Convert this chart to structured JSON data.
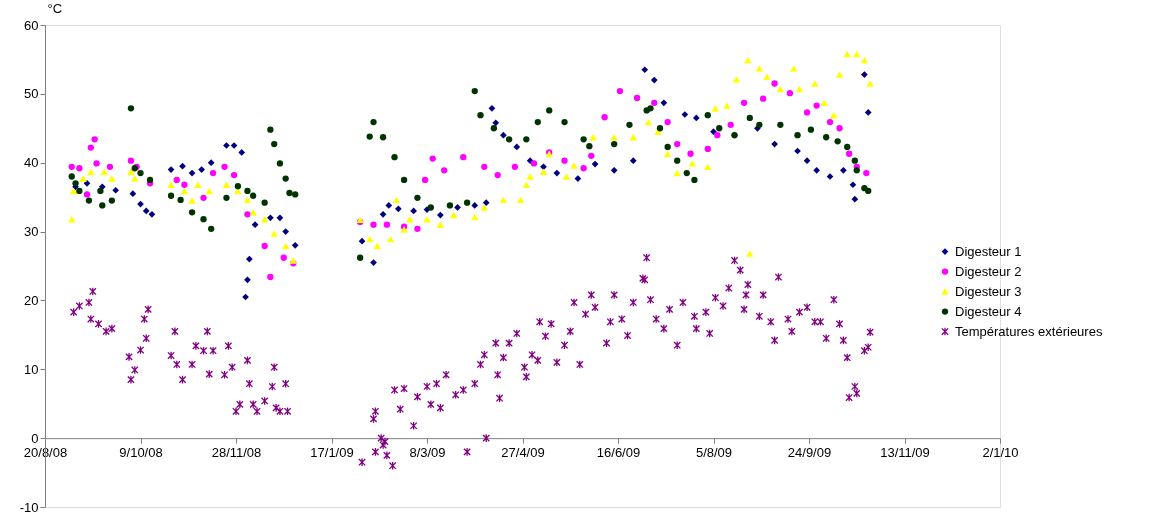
{
  "chart_data": {
    "type": "scatter",
    "ylabel": "°C",
    "xlim": [
      "2008-08-20",
      "2010-01-02"
    ],
    "ylim": [
      -10,
      60
    ],
    "yticks": [
      -10,
      0,
      10,
      20,
      30,
      40,
      50,
      60
    ],
    "xticks": [
      {
        "value": "2008-08-20",
        "label": "20/8/08"
      },
      {
        "value": "2008-10-09",
        "label": "9/10/08"
      },
      {
        "value": "2008-11-28",
        "label": "28/11/08"
      },
      {
        "value": "2009-01-17",
        "label": "17/1/09"
      },
      {
        "value": "2009-03-08",
        "label": "8/3/09"
      },
      {
        "value": "2009-04-27",
        "label": "27/4/09"
      },
      {
        "value": "2009-06-16",
        "label": "16/6/09"
      },
      {
        "value": "2009-08-05",
        "label": "5/8/09"
      },
      {
        "value": "2009-09-24",
        "label": "24/9/09"
      },
      {
        "value": "2009-11-13",
        "label": "13/11/09"
      },
      {
        "value": "2010-01-02",
        "label": "2/1/10"
      }
    ],
    "grid": false,
    "legend": "right",
    "series": [
      {
        "name": "Digesteur 1",
        "color": "#000080",
        "marker": "diamond",
        "x": [
          "2008-09-05",
          "2008-09-11",
          "2008-09-19",
          "2008-09-26",
          "2008-10-05",
          "2008-10-09",
          "2008-10-12",
          "2008-10-15",
          "2008-10-25",
          "2008-10-31",
          "2008-11-05",
          "2008-11-10",
          "2008-11-15",
          "2008-11-23",
          "2008-11-27",
          "2008-12-01",
          "2008-12-03",
          "2008-12-04",
          "2008-12-05",
          "2008-12-08",
          "2008-12-16",
          "2008-12-21",
          "2008-12-24",
          "2008-12-29",
          "2009-02-02",
          "2009-02-08",
          "2009-02-13",
          "2009-02-16",
          "2009-02-21",
          "2009-03-01",
          "2009-03-08",
          "2009-03-15",
          "2009-03-24",
          "2009-04-02",
          "2009-04-08",
          "2009-04-11",
          "2009-04-13",
          "2009-04-17",
          "2009-04-24",
          "2009-05-01",
          "2009-05-08",
          "2009-05-15",
          "2009-05-26",
          "2009-06-04",
          "2009-06-14",
          "2009-06-24",
          "2009-06-30",
          "2009-07-05",
          "2009-07-10",
          "2009-07-21",
          "2009-07-27",
          "2009-08-05",
          "2009-08-16",
          "2009-08-28",
          "2009-09-06",
          "2009-09-18",
          "2009-09-23",
          "2009-09-28",
          "2009-10-05",
          "2009-10-12",
          "2009-10-17",
          "2009-10-18",
          "2009-10-23",
          "2009-10-25"
        ],
        "values": [
          36.5,
          37,
          36.5,
          36,
          35.5,
          34,
          33,
          32.5,
          39,
          39.5,
          38.5,
          39,
          40,
          42.5,
          42.5,
          41.5,
          20.5,
          23,
          26,
          31,
          32,
          32,
          30,
          28,
          28.6,
          25.5,
          32.5,
          33.8,
          33.3,
          33,
          33.2,
          32.4,
          33.5,
          33.8,
          34.2,
          47.9,
          45.8,
          44,
          42.3,
          40.3,
          39.4,
          38.5,
          37.7,
          39.8,
          38.9,
          40.3,
          53.5,
          52,
          48.7,
          47,
          46.5,
          44.5,
          44,
          45,
          42.7,
          41.7,
          40.3,
          38.9,
          38,
          38.9,
          36.8,
          34.7,
          52.8,
          47.3
        ]
      },
      {
        "name": "Digesteur 2",
        "color": "#ff00ff",
        "marker": "circle",
        "x": [
          "2008-09-03",
          "2008-09-07",
          "2008-09-11",
          "2008-09-13",
          "2008-09-15",
          "2008-09-16",
          "2008-09-23",
          "2008-10-04",
          "2008-10-07",
          "2008-10-14",
          "2008-10-28",
          "2008-11-01",
          "2008-11-11",
          "2008-11-16",
          "2008-11-22",
          "2008-11-27",
          "2008-12-04",
          "2008-12-13",
          "2008-12-16",
          "2008-12-23",
          "2008-12-28",
          "2009-02-01",
          "2009-02-08",
          "2009-02-15",
          "2009-02-24",
          "2009-03-03",
          "2009-03-07",
          "2009-03-11",
          "2009-03-17",
          "2009-03-27",
          "2009-04-07",
          "2009-04-14",
          "2009-04-23",
          "2009-05-03",
          "2009-05-11",
          "2009-05-19",
          "2009-05-29",
          "2009-06-02",
          "2009-06-09",
          "2009-06-17",
          "2009-06-26",
          "2009-07-05",
          "2009-07-12",
          "2009-07-17",
          "2009-07-24",
          "2009-08-02",
          "2009-08-07",
          "2009-08-14",
          "2009-08-21",
          "2009-08-31",
          "2009-09-06",
          "2009-09-14",
          "2009-09-23",
          "2009-09-28",
          "2009-10-05",
          "2009-10-10",
          "2009-10-15",
          "2009-10-19",
          "2009-10-24"
        ],
        "values": [
          39.4,
          39.2,
          35.4,
          42.2,
          43.4,
          39.9,
          39.4,
          40.3,
          39.4,
          37,
          37.5,
          36.8,
          34.9,
          38.5,
          39.4,
          38.2,
          32.5,
          27.9,
          23.4,
          26.2,
          25.4,
          31.4,
          31,
          31,
          30.7,
          30.4,
          37.5,
          40.6,
          38.9,
          40.8,
          39.4,
          38.2,
          39.4,
          39.9,
          41.5,
          40.3,
          39.2,
          41,
          46.6,
          50.4,
          49.4,
          48.7,
          45.9,
          42.7,
          41.3,
          42,
          44,
          45.5,
          48.7,
          49.3,
          51.5,
          50.1,
          47.3,
          48.3,
          45.9,
          45,
          41.3,
          39.4,
          38.5
        ]
      },
      {
        "name": "Digesteur 3",
        "color": "#ffff00",
        "marker": "triangle",
        "x": [
          "2008-09-03",
          "2008-09-04",
          "2008-09-09",
          "2008-09-13",
          "2008-09-20",
          "2008-09-24",
          "2008-10-04",
          "2008-10-06",
          "2008-10-14",
          "2008-10-25",
          "2008-11-01",
          "2008-11-05",
          "2008-11-08",
          "2008-11-14",
          "2008-11-23",
          "2008-11-29",
          "2008-12-04",
          "2008-12-07",
          "2008-12-13",
          "2008-12-18",
          "2008-12-24",
          "2008-12-28",
          "2009-02-01",
          "2009-02-06",
          "2009-02-10",
          "2009-02-17",
          "2009-02-20",
          "2009-02-24",
          "2009-02-27",
          "2009-03-08",
          "2009-03-15",
          "2009-03-22",
          "2009-04-02",
          "2009-04-07",
          "2009-04-17",
          "2009-04-26",
          "2009-04-29",
          "2009-05-01",
          "2009-05-08",
          "2009-05-11",
          "2009-05-20",
          "2009-05-24",
          "2009-06-03",
          "2009-06-14",
          "2009-06-24",
          "2009-07-02",
          "2009-07-07",
          "2009-07-12",
          "2009-07-17",
          "2009-07-25",
          "2009-08-02",
          "2009-08-06",
          "2009-08-12",
          "2009-08-17",
          "2009-08-23",
          "2009-08-24",
          "2009-08-29",
          "2009-09-02",
          "2009-09-09",
          "2009-09-16",
          "2009-09-19",
          "2009-09-27",
          "2009-10-02",
          "2009-10-07",
          "2009-10-10",
          "2009-10-14",
          "2009-10-19",
          "2009-10-23",
          "2009-10-26"
        ],
        "values": [
          31.8,
          35.9,
          37.7,
          38.7,
          38.7,
          37.7,
          38.7,
          37.7,
          37.7,
          36.8,
          35.9,
          34.5,
          36.8,
          35.9,
          36.8,
          35.9,
          34.6,
          32.8,
          31.8,
          29.7,
          27.9,
          25.8,
          31.7,
          28.9,
          27.9,
          28.9,
          34.6,
          30.3,
          31.8,
          31.8,
          31,
          32.4,
          32.1,
          33.5,
          34.6,
          34.6,
          36.8,
          38,
          38.7,
          41.3,
          38,
          39.6,
          43.7,
          43.7,
          43.7,
          45.9,
          44.5,
          41.3,
          38.5,
          39.9,
          39.4,
          47.9,
          48.3,
          52.1,
          54.9,
          26.8,
          53.7,
          52.5,
          50.7,
          53.7,
          50.7,
          51.5,
          48.7,
          46.9,
          52.8,
          55.8,
          55.8,
          54.9,
          51.5
        ]
      },
      {
        "name": "Digesteur 4",
        "color": "#003300",
        "marker": "circle",
        "x": [
          "2008-09-03",
          "2008-09-05",
          "2008-09-07",
          "2008-09-12",
          "2008-09-18",
          "2008-09-19",
          "2008-09-24",
          "2008-10-04",
          "2008-10-06",
          "2008-10-09",
          "2008-10-14",
          "2008-10-25",
          "2008-10-30",
          "2008-11-05",
          "2008-11-11",
          "2008-11-15",
          "2008-11-23",
          "2008-11-29",
          "2008-12-04",
          "2008-12-07",
          "2008-12-13",
          "2008-12-16",
          "2008-12-18",
          "2008-12-21",
          "2008-12-24",
          "2008-12-26",
          "2008-12-29",
          "2009-02-01",
          "2009-02-06",
          "2009-02-08",
          "2009-02-13",
          "2009-02-19",
          "2009-02-24",
          "2009-03-03",
          "2009-03-10",
          "2009-03-20",
          "2009-03-29",
          "2009-04-02",
          "2009-04-05",
          "2009-04-12",
          "2009-04-20",
          "2009-04-29",
          "2009-05-05",
          "2009-05-11",
          "2009-05-19",
          "2009-05-29",
          "2009-06-01",
          "2009-06-14",
          "2009-06-22",
          "2009-07-01",
          "2009-07-03",
          "2009-07-08",
          "2009-07-12",
          "2009-07-17",
          "2009-07-22",
          "2009-07-26",
          "2009-08-02",
          "2009-08-08",
          "2009-08-16",
          "2009-08-24",
          "2009-08-29",
          "2009-09-09",
          "2009-09-18",
          "2009-09-25",
          "2009-10-03",
          "2009-10-09",
          "2009-10-14",
          "2009-10-18",
          "2009-10-19",
          "2009-10-23",
          "2009-10-25"
        ],
        "values": [
          38,
          37,
          35.9,
          34.5,
          35.9,
          33.8,
          34.5,
          47.9,
          39.2,
          38.5,
          37.5,
          35.2,
          34.6,
          32.8,
          31.8,
          30.4,
          34.9,
          36.6,
          35.9,
          35.2,
          34.2,
          44.8,
          42.7,
          39.9,
          37.7,
          35.6,
          35.4,
          26.2,
          43.8,
          45.9,
          43.7,
          40.8,
          37.5,
          34.9,
          33.5,
          33.8,
          34.2,
          50.4,
          46.9,
          45,
          43.4,
          43.4,
          45.9,
          47.6,
          45.9,
          43.4,
          42.4,
          42.7,
          45.5,
          47.6,
          47.9,
          45,
          42.3,
          40.3,
          38.5,
          37.5,
          46.9,
          45,
          44,
          46.5,
          45.5,
          45.5,
          44,
          44.8,
          43.7,
          43.1,
          42.3,
          40.3,
          38.9,
          36.3,
          35.9
        ]
      },
      {
        "name": "Températures extérieures",
        "color": "#800080",
        "marker": "cross",
        "x": [
          "2008-09-04",
          "2008-09-07",
          "2008-09-12",
          "2008-09-13",
          "2008-09-14",
          "2008-09-17",
          "2008-09-21",
          "2008-09-24",
          "2008-10-03",
          "2008-10-04",
          "2008-10-06",
          "2008-10-09",
          "2008-10-11",
          "2008-10-12",
          "2008-10-13",
          "2008-10-25",
          "2008-10-27",
          "2008-10-28",
          "2008-10-31",
          "2008-11-05",
          "2008-11-07",
          "2008-11-11",
          "2008-11-13",
          "2008-11-14",
          "2008-11-16",
          "2008-11-22",
          "2008-11-24",
          "2008-11-26",
          "2008-11-28",
          "2008-11-30",
          "2008-12-04",
          "2008-12-05",
          "2008-12-07",
          "2008-12-09",
          "2008-12-13",
          "2008-12-17",
          "2008-12-18",
          "2008-12-19",
          "2008-12-21",
          "2008-12-24",
          "2008-12-25",
          "2009-02-02",
          "2009-02-08",
          "2009-02-09",
          "2009-02-09",
          "2009-02-12",
          "2009-02-13",
          "2009-02-14",
          "2009-02-15",
          "2009-02-18",
          "2009-02-19",
          "2009-02-22",
          "2009-02-24",
          "2009-03-01",
          "2009-03-03",
          "2009-03-08",
          "2009-03-10",
          "2009-03-13",
          "2009-03-15",
          "2009-03-18",
          "2009-03-23",
          "2009-03-27",
          "2009-03-29",
          "2009-04-02",
          "2009-04-05",
          "2009-04-07",
          "2009-04-08",
          "2009-04-13",
          "2009-04-14",
          "2009-04-15",
          "2009-04-17",
          "2009-04-20",
          "2009-04-24",
          "2009-04-28",
          "2009-04-29",
          "2009-05-02",
          "2009-05-05",
          "2009-05-06",
          "2009-05-09",
          "2009-05-12",
          "2009-05-15",
          "2009-05-19",
          "2009-05-22",
          "2009-05-24",
          "2009-05-27",
          "2009-05-30",
          "2009-06-02",
          "2009-06-04",
          "2009-06-10",
          "2009-06-12",
          "2009-06-14",
          "2009-06-18",
          "2009-06-21",
          "2009-06-24",
          "2009-06-29",
          "2009-06-30",
          "2009-07-01",
          "2009-07-03",
          "2009-07-06",
          "2009-07-10",
          "2009-07-13",
          "2009-07-17",
          "2009-07-20",
          "2009-07-26",
          "2009-07-27",
          "2009-08-01",
          "2009-08-03",
          "2009-08-06",
          "2009-08-10",
          "2009-08-13",
          "2009-08-16",
          "2009-08-19",
          "2009-08-21",
          "2009-08-22",
          "2009-08-23",
          "2009-08-29",
          "2009-08-31",
          "2009-09-04",
          "2009-09-06",
          "2009-09-08",
          "2009-09-13",
          "2009-09-15",
          "2009-09-19",
          "2009-09-23",
          "2009-09-27",
          "2009-09-30",
          "2009-10-03",
          "2009-10-07",
          "2009-10-10",
          "2009-10-12",
          "2009-10-14",
          "2009-10-15",
          "2009-10-18",
          "2009-10-19",
          "2009-10-23",
          "2009-10-25",
          "2009-10-26"
        ],
        "values": [
          18.3,
          19.2,
          19.7,
          17.3,
          21.3,
          16.6,
          15.5,
          15.9,
          11.8,
          8.5,
          9.9,
          12.8,
          17.3,
          14.5,
          18.7,
          12,
          15.5,
          10.7,
          8.5,
          10.7,
          13.4,
          12.7,
          15.5,
          9.3,
          12.7,
          9.2,
          13.4,
          10.3,
          3.9,
          4.9,
          11.3,
          7.9,
          4.9,
          3.9,
          5.4,
          7.5,
          10.3,
          4.4,
          3.9,
          7.9,
          3.9,
          -3.5,
          2.8,
          3.9,
          -2,
          0,
          -1,
          -0.5,
          -2.5,
          -4,
          7,
          4.2,
          7.2,
          1.8,
          6,
          7.5,
          4.9,
          7.9,
          4.4,
          9.2,
          6.3,
          7,
          -2,
          7.9,
          10.7,
          12.1,
          0,
          13.8,
          9.2,
          5.8,
          11.7,
          13.8,
          15.2,
          10.3,
          8.9,
          12.1,
          11.3,
          16.9,
          14.8,
          16.6,
          11,
          13.5,
          15.5,
          19.7,
          10.7,
          18,
          20.8,
          19,
          13.8,
          16.9,
          20.8,
          17.3,
          14.9,
          19.7,
          23.2,
          23,
          26.2,
          20.1,
          17.3,
          15.9,
          18.7,
          13.5,
          19.7,
          17.7,
          15.9,
          18.3,
          15.2,
          20.4,
          19.2,
          21.8,
          25.8,
          24.4,
          18.7,
          20.8,
          22.3,
          17.7,
          20.8,
          16.9,
          14.2,
          23.4,
          17.3,
          15.5,
          18.3,
          19,
          16.9,
          16.9,
          14.5,
          20.1,
          16.6,
          14.2,
          11.7,
          5.9,
          7.5,
          6.5,
          12.7,
          13.2,
          15.4
        ]
      }
    ]
  }
}
